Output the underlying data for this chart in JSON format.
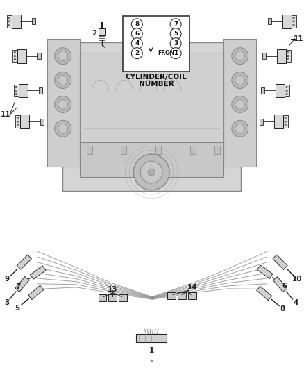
{
  "bg_color": "#ffffff",
  "line_color": "#555555",
  "dark_color": "#222222",
  "gray_light": "#cccccc",
  "gray_med": "#aaaaaa",
  "gray_dark": "#888888",
  "cylinder_label1": "CYLINDER/COIL",
  "cylinder_label2": "NUMBER",
  "front_label": "FRONT",
  "nums_left": [
    "8",
    "6",
    "4",
    "2"
  ],
  "nums_right": [
    "7",
    "5",
    "3",
    "1"
  ],
  "figsize": [
    4.38,
    5.33
  ],
  "dpi": 100
}
